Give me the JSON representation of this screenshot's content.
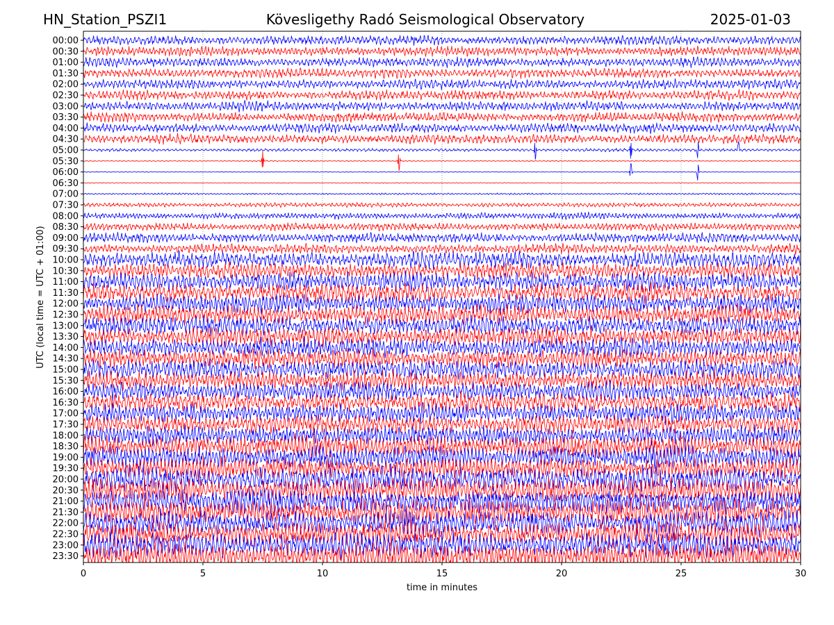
{
  "header": {
    "station": "HN_Station_PSZI1",
    "observatory": "Kövesligethy Radó Seismological Observatory",
    "date": "2025-01-03"
  },
  "chart_data": {
    "type": "line",
    "chart_kind": "helicorder",
    "xlabel": "time in minutes",
    "ylabel": "UTC (local time = UTC + 01:00)",
    "xlim": [
      0,
      30
    ],
    "x_ticks": [
      0,
      5,
      10,
      15,
      20,
      25,
      30
    ],
    "row_labels": [
      "00:00",
      "00:30",
      "01:00",
      "01:30",
      "02:00",
      "02:30",
      "03:00",
      "03:30",
      "04:00",
      "04:30",
      "05:00",
      "05:30",
      "06:00",
      "06:30",
      "07:00",
      "07:30",
      "08:00",
      "08:30",
      "09:00",
      "09:30",
      "10:00",
      "10:30",
      "11:00",
      "11:30",
      "12:00",
      "12:30",
      "13:00",
      "13:30",
      "14:00",
      "14:30",
      "15:00",
      "15:30",
      "16:00",
      "16:30",
      "17:00",
      "17:30",
      "18:00",
      "18:30",
      "19:00",
      "19:30",
      "20:00",
      "20:30",
      "21:00",
      "21:30",
      "22:00",
      "22:30",
      "23:00",
      "23:30"
    ],
    "row_colors": [
      "#0000ff",
      "#ff0000"
    ],
    "grid": "vertical dotted at 5-minute ticks",
    "row_activity": [
      3,
      3,
      3,
      3,
      3,
      3,
      3,
      3,
      3,
      3,
      1,
      0.4,
      0.3,
      0.3,
      0.6,
      1.5,
      2,
      2.5,
      3,
      3,
      5,
      5,
      6,
      6,
      6,
      6,
      6,
      6,
      6,
      6,
      6,
      6,
      6,
      6,
      6,
      6,
      6,
      7,
      7,
      7,
      8,
      8,
      8,
      8,
      8,
      8,
      8,
      8
    ],
    "spikes": [
      {
        "row": 10,
        "minute": 18.9
      },
      {
        "row": 10,
        "minute": 22.9
      },
      {
        "row": 10,
        "minute": 25.7
      },
      {
        "row": 10,
        "minute": 27.4
      },
      {
        "row": 11,
        "minute": 7.5
      },
      {
        "row": 11,
        "minute": 13.2
      },
      {
        "row": 12,
        "minute": 22.9
      },
      {
        "row": 12,
        "minute": 25.7
      }
    ]
  }
}
